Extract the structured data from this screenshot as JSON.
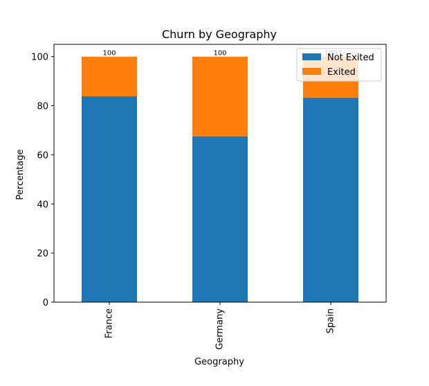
{
  "chart_data": {
    "type": "bar",
    "stacked": true,
    "title": "Churn by Geography",
    "xlabel": "Geography",
    "ylabel": "Percentage",
    "categories": [
      "France",
      "Germany",
      "Spain"
    ],
    "ylim": [
      0,
      105
    ],
    "yticks": [
      "0",
      "20",
      "40",
      "60",
      "80",
      "100"
    ],
    "series": [
      {
        "name": "Not Exited",
        "values": [
          83.8253,
          67.5568,
          83.3266
        ],
        "color": "#1f77b4"
      },
      {
        "name": "Exited",
        "values": [
          16.1747,
          32.4432,
          16.6734
        ],
        "color": "#ff7f0e"
      }
    ],
    "data_labels": [
      [
        "83.8253",
        "67.5568",
        "83.3266"
      ],
      [
        "100",
        "100",
        "100"
      ]
    ],
    "grid": false,
    "legend": "top-right"
  }
}
